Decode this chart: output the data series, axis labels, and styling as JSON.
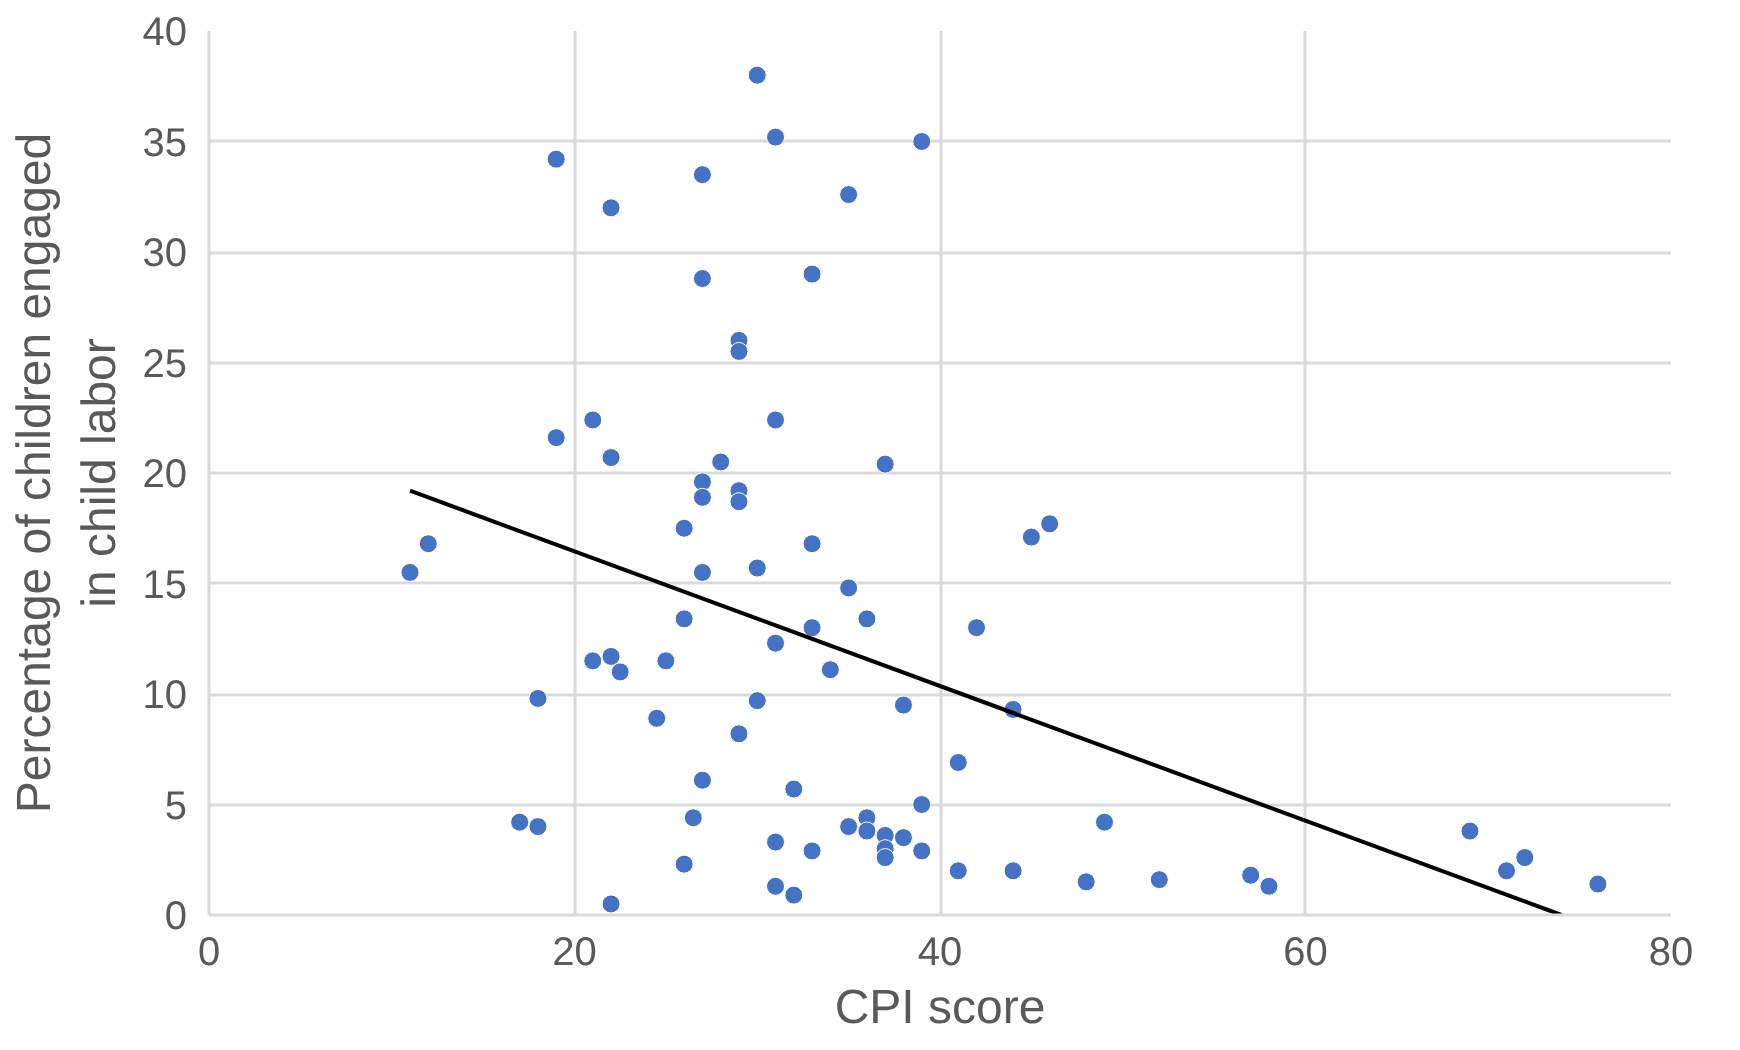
{
  "chart_data": {
    "type": "scatter",
    "xlabel": "CPI score",
    "ylabel": "Percentage of children engaged in child labor",
    "xlim": [
      0,
      80
    ],
    "ylim": [
      0,
      40
    ],
    "xticks": [
      0,
      20,
      40,
      60,
      80
    ],
    "yticks": [
      0,
      5,
      10,
      15,
      20,
      25,
      30,
      35,
      40
    ],
    "grid": true,
    "marker": "circle",
    "series": [
      {
        "color": "#4472c4",
        "x": [
          11,
          12,
          17,
          18,
          18,
          19,
          19,
          21,
          21,
          22,
          22,
          22,
          22,
          22.5,
          24.5,
          25,
          26,
          26,
          26,
          26.5,
          27,
          27,
          27,
          27,
          27,
          27,
          28,
          29,
          29,
          29,
          29,
          29,
          30,
          30,
          30,
          31,
          31,
          31,
          31,
          31,
          32,
          32,
          33,
          33,
          33,
          33,
          34,
          35,
          35,
          35,
          36,
          36,
          36,
          37,
          37,
          37,
          37,
          38,
          38,
          39,
          39,
          39,
          41,
          41,
          42,
          44,
          44,
          45,
          46,
          48,
          49,
          52,
          57,
          58,
          69,
          71,
          72,
          76
        ],
        "values": [
          15.5,
          16.8,
          4.2,
          4.0,
          9.8,
          34.2,
          21.6,
          22.4,
          11.5,
          11.7,
          20.7,
          32.0,
          0.5,
          11.0,
          8.9,
          11.5,
          17.5,
          13.4,
          2.3,
          4.4,
          33.5,
          28.8,
          19.6,
          18.9,
          15.5,
          6.1,
          20.5,
          26.0,
          25.5,
          19.2,
          18.7,
          8.2,
          38.0,
          15.7,
          9.7,
          35.2,
          22.4,
          12.3,
          3.3,
          1.3,
          0.9,
          5.7,
          29.0,
          16.8,
          13.0,
          2.9,
          11.1,
          32.6,
          14.8,
          4.0,
          13.4,
          4.4,
          3.8,
          20.4,
          3.6,
          3.0,
          2.6,
          9.5,
          3.5,
          35.0,
          5.0,
          2.9,
          6.9,
          2.0,
          13.0,
          9.3,
          2.0,
          17.1,
          17.7,
          1.5,
          4.2,
          1.6,
          1.8,
          1.3,
          3.8,
          2.0,
          2.6,
          1.4
        ]
      },
      {
        "type": "line",
        "color": "#000000",
        "x": [
          11,
          74
        ],
        "values": [
          19.2,
          0
        ],
        "marker": "none"
      }
    ]
  }
}
